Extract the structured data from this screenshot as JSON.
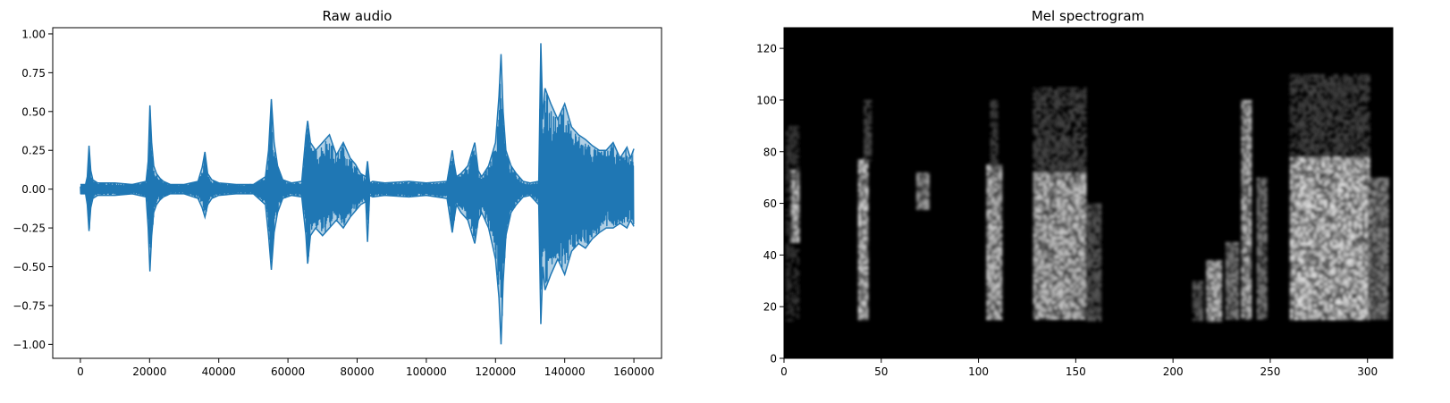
{
  "chart_data": [
    {
      "type": "line",
      "title": "Raw audio",
      "xlabel": "",
      "ylabel": "",
      "xlim": [
        -7990,
        167990
      ],
      "ylim": [
        -1.09,
        1.04
      ],
      "xticks": [
        0,
        20000,
        40000,
        60000,
        80000,
        100000,
        120000,
        140000,
        160000
      ],
      "xtick_labels": [
        "0",
        "20000",
        "40000",
        "60000",
        "80000",
        "100000",
        "120000",
        "140000",
        "160000"
      ],
      "yticks": [
        -1.0,
        -0.75,
        -0.5,
        -0.25,
        0.0,
        0.25,
        0.5,
        0.75,
        1.0
      ],
      "ytick_labels": [
        "−1.00",
        "−0.75",
        "−0.50",
        "−0.25",
        "0.00",
        "0.25",
        "0.50",
        "0.75",
        "1.00"
      ],
      "grid": false,
      "color": "#1f77b4",
      "envelope": {
        "x": [
          0,
          1500,
          2000,
          2500,
          3000,
          3600,
          5000,
          10000,
          15000,
          19000,
          19600,
          20100,
          20600,
          21200,
          22000,
          23000,
          24000,
          26000,
          30000,
          34000,
          35200,
          36000,
          36800,
          38000,
          40000,
          45000,
          50000,
          53500,
          54400,
          55200,
          56000,
          57000,
          58500,
          61000,
          64000,
          65200,
          65700,
          66500,
          68000,
          70000,
          72000,
          74000,
          76000,
          78000,
          79500,
          81000,
          82500,
          83000,
          83600,
          84500,
          88000,
          95000,
          100000,
          106000,
          107500,
          108000,
          108700,
          110000,
          112000,
          114000,
          115000,
          116000,
          118000,
          120000,
          121000,
          121600,
          122200,
          123000,
          124500,
          126000,
          128000,
          130000,
          132500,
          133100,
          133700,
          134300,
          136000,
          138000,
          140000,
          142000,
          144000,
          146000,
          148000,
          150000,
          152000,
          154000,
          156000,
          158000,
          159000,
          160000
        ],
        "upper": [
          0.03,
          0.03,
          0.08,
          0.28,
          0.12,
          0.06,
          0.04,
          0.04,
          0.03,
          0.05,
          0.18,
          0.54,
          0.3,
          0.15,
          0.1,
          0.07,
          0.05,
          0.03,
          0.03,
          0.05,
          0.14,
          0.24,
          0.1,
          0.06,
          0.04,
          0.03,
          0.03,
          0.08,
          0.25,
          0.58,
          0.3,
          0.15,
          0.06,
          0.04,
          0.05,
          0.35,
          0.44,
          0.3,
          0.25,
          0.3,
          0.35,
          0.22,
          0.3,
          0.2,
          0.16,
          0.1,
          0.08,
          0.18,
          0.04,
          0.05,
          0.04,
          0.05,
          0.04,
          0.05,
          0.25,
          0.17,
          0.08,
          0.1,
          0.15,
          0.3,
          0.12,
          0.08,
          0.15,
          0.3,
          0.6,
          0.87,
          0.5,
          0.25,
          0.15,
          0.1,
          0.05,
          0.04,
          0.05,
          0.94,
          0.45,
          0.65,
          0.55,
          0.45,
          0.55,
          0.4,
          0.35,
          0.32,
          0.28,
          0.25,
          0.25,
          0.3,
          0.2,
          0.27,
          0.2,
          0.26
        ],
        "lower": [
          -0.03,
          -0.03,
          -0.1,
          -0.27,
          -0.12,
          -0.06,
          -0.04,
          -0.04,
          -0.03,
          -0.05,
          -0.25,
          -0.53,
          -0.3,
          -0.15,
          -0.1,
          -0.07,
          -0.05,
          -0.03,
          -0.03,
          -0.06,
          -0.12,
          -0.18,
          -0.1,
          -0.06,
          -0.04,
          -0.03,
          -0.03,
          -0.1,
          -0.3,
          -0.52,
          -0.28,
          -0.15,
          -0.06,
          -0.04,
          -0.05,
          -0.3,
          -0.48,
          -0.3,
          -0.25,
          -0.3,
          -0.25,
          -0.2,
          -0.25,
          -0.18,
          -0.14,
          -0.1,
          -0.08,
          -0.34,
          -0.04,
          -0.05,
          -0.04,
          -0.05,
          -0.04,
          -0.06,
          -0.28,
          -0.2,
          -0.1,
          -0.15,
          -0.2,
          -0.35,
          -0.2,
          -0.15,
          -0.25,
          -0.45,
          -0.7,
          -1.0,
          -0.6,
          -0.3,
          -0.15,
          -0.1,
          -0.05,
          -0.04,
          -0.1,
          -0.87,
          -0.5,
          -0.65,
          -0.55,
          -0.45,
          -0.55,
          -0.4,
          -0.35,
          -0.38,
          -0.32,
          -0.28,
          -0.25,
          -0.25,
          -0.22,
          -0.25,
          -0.2,
          -0.24
        ]
      }
    },
    {
      "type": "heatmap",
      "title": "Mel spectrogram",
      "xlabel": "",
      "ylabel": "",
      "xlim": [
        0,
        313
      ],
      "ylim": [
        0,
        128
      ],
      "xticks": [
        0,
        50,
        100,
        150,
        200,
        250,
        300
      ],
      "xtick_labels": [
        "0",
        "50",
        "100",
        "150",
        "200",
        "250",
        "300"
      ],
      "yticks": [
        0,
        20,
        40,
        60,
        80,
        100,
        120
      ],
      "ytick_labels": [
        "0",
        "20",
        "40",
        "60",
        "80",
        "100",
        "120"
      ],
      "colormap": "gray",
      "background": "#000000",
      "energy_regions": [
        {
          "x0": 1,
          "x1": 7,
          "y0": 15,
          "y1": 90,
          "intensity": 0.25
        },
        {
          "x0": 4,
          "x1": 7,
          "y0": 45,
          "y1": 73,
          "intensity": 0.85
        },
        {
          "x0": 38,
          "x1": 43,
          "y0": 15,
          "y1": 77,
          "intensity": 0.95
        },
        {
          "x0": 41,
          "x1": 44,
          "y0": 77,
          "y1": 100,
          "intensity": 0.35
        },
        {
          "x0": 68,
          "x1": 74,
          "y0": 58,
          "y1": 72,
          "intensity": 0.7
        },
        {
          "x0": 104,
          "x1": 112,
          "y0": 15,
          "y1": 75,
          "intensity": 0.9
        },
        {
          "x0": 106,
          "x1": 110,
          "y0": 75,
          "y1": 100,
          "intensity": 0.3
        },
        {
          "x0": 128,
          "x1": 155,
          "y0": 15,
          "y1": 72,
          "intensity": 0.85
        },
        {
          "x0": 128,
          "x1": 155,
          "y0": 72,
          "y1": 105,
          "intensity": 0.3
        },
        {
          "x0": 155,
          "x1": 163,
          "y0": 15,
          "y1": 60,
          "intensity": 0.4
        },
        {
          "x0": 210,
          "x1": 215,
          "y0": 15,
          "y1": 30,
          "intensity": 0.45
        },
        {
          "x0": 217,
          "x1": 225,
          "y0": 15,
          "y1": 38,
          "intensity": 0.9
        },
        {
          "x0": 227,
          "x1": 233,
          "y0": 15,
          "y1": 45,
          "intensity": 0.6
        },
        {
          "x0": 235,
          "x1": 240,
          "y0": 15,
          "y1": 100,
          "intensity": 0.85
        },
        {
          "x0": 243,
          "x1": 248,
          "y0": 15,
          "y1": 70,
          "intensity": 0.55
        },
        {
          "x0": 260,
          "x1": 300,
          "y0": 15,
          "y1": 78,
          "intensity": 0.95
        },
        {
          "x0": 260,
          "x1": 300,
          "y0": 78,
          "y1": 110,
          "intensity": 0.3
        },
        {
          "x0": 300,
          "x1": 310,
          "y0": 15,
          "y1": 70,
          "intensity": 0.6
        }
      ]
    }
  ]
}
